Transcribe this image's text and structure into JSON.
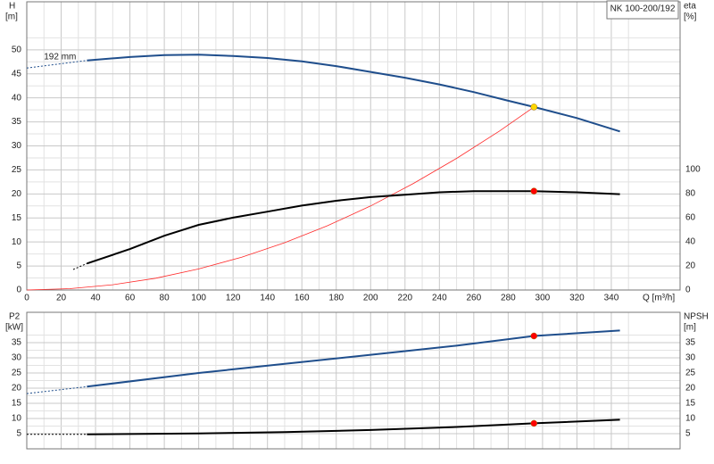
{
  "chart_data": [
    {
      "type": "line",
      "title": "NK 100-200/192",
      "annotation": {
        "text": "192 mm",
        "x": 10,
        "y": 48.5
      },
      "y_label": "H",
      "y_unit": "[m]",
      "y2_label": "eta",
      "y2_unit": "[%]",
      "x_label": "Q [m³/h]",
      "xlim": [
        0,
        380
      ],
      "xticks": [
        0,
        20,
        40,
        60,
        80,
        100,
        120,
        140,
        160,
        180,
        200,
        220,
        240,
        260,
        280,
        300,
        320,
        340
      ],
      "ylim": [
        0,
        60
      ],
      "yticks": [
        0,
        5,
        10,
        15,
        20,
        25,
        30,
        35,
        40,
        45,
        50
      ],
      "y2lim": [
        0,
        239
      ],
      "y2ticks": [
        0,
        20,
        40,
        60,
        80,
        100
      ],
      "grid": true,
      "series": [
        {
          "color": "#1f4e8c",
          "dashed": true,
          "x": [
            0,
            35
          ],
          "values": [
            46.2,
            47.8
          ]
        },
        {
          "color": "#1f4e8c",
          "x": [
            35,
            60,
            80,
            100,
            120,
            140,
            160,
            180,
            200,
            220,
            240,
            260,
            280,
            295,
            320,
            345
          ],
          "values": [
            47.8,
            48.5,
            48.9,
            49,
            48.7,
            48.3,
            47.6,
            46.6,
            45.4,
            44.2,
            42.8,
            41.2,
            39.4,
            38.1,
            35.8,
            33
          ]
        },
        {
          "color": "#ff2a2a",
          "thin": true,
          "x": [
            0,
            25,
            50,
            75,
            100,
            125,
            150,
            175,
            200,
            225,
            250,
            275,
            295
          ],
          "values": [
            0,
            0.27,
            1.09,
            2.46,
            4.38,
            6.84,
            9.85,
            13.4,
            17.5,
            22.2,
            27.4,
            33.1,
            38.1
          ]
        },
        {
          "color": "#000000",
          "dashed": true,
          "axis": "y2",
          "x": [
            27,
            35
          ],
          "values": [
            17,
            22
          ]
        },
        {
          "color": "#000000",
          "axis": "y2",
          "x": [
            35,
            60,
            80,
            100,
            120,
            140,
            160,
            180,
            200,
            220,
            240,
            260,
            295,
            320,
            345
          ],
          "values": [
            22,
            34,
            45,
            54,
            60,
            65,
            70,
            74,
            77,
            79,
            81,
            82,
            82,
            81,
            79.5
          ]
        }
      ],
      "points": [
        {
          "x": 295,
          "y": 38.1,
          "color": "#ffd700"
        },
        {
          "x": 295,
          "y": 82,
          "axis": "y2",
          "color": "#ff0000"
        }
      ]
    },
    {
      "type": "line",
      "y_label": "P2",
      "y_unit": "[kW]",
      "y2_label": "NPSH",
      "y2_unit": "[m]",
      "xlim": [
        0,
        380
      ],
      "ylim": [
        0,
        45
      ],
      "yticks": [
        5,
        10,
        15,
        20,
        25,
        30,
        35
      ],
      "y2lim": [
        0,
        45
      ],
      "y2ticks": [
        5,
        10,
        15,
        20,
        25,
        30,
        35
      ],
      "grid": true,
      "series": [
        {
          "color": "#1f4e8c",
          "dashed": true,
          "x": [
            0,
            35
          ],
          "values": [
            18.2,
            20.5
          ]
        },
        {
          "color": "#1f4e8c",
          "x": [
            35,
            100,
            150,
            200,
            250,
            295,
            345
          ],
          "values": [
            20.5,
            25,
            28,
            31,
            34,
            37.2,
            39
          ]
        },
        {
          "color": "#000000",
          "dashed": true,
          "axis": "y2",
          "x": [
            0,
            35
          ],
          "values": [
            4.8,
            4.8
          ]
        },
        {
          "color": "#000000",
          "axis": "y2",
          "x": [
            35,
            100,
            150,
            200,
            250,
            295,
            345
          ],
          "values": [
            4.8,
            5.1,
            5.5,
            6.2,
            7.2,
            8.4,
            9.6
          ]
        }
      ],
      "points": [
        {
          "x": 295,
          "y": 37.2,
          "color": "#ff0000"
        },
        {
          "x": 295,
          "y": 8.4,
          "axis": "y2",
          "color": "#ff0000"
        }
      ]
    }
  ]
}
